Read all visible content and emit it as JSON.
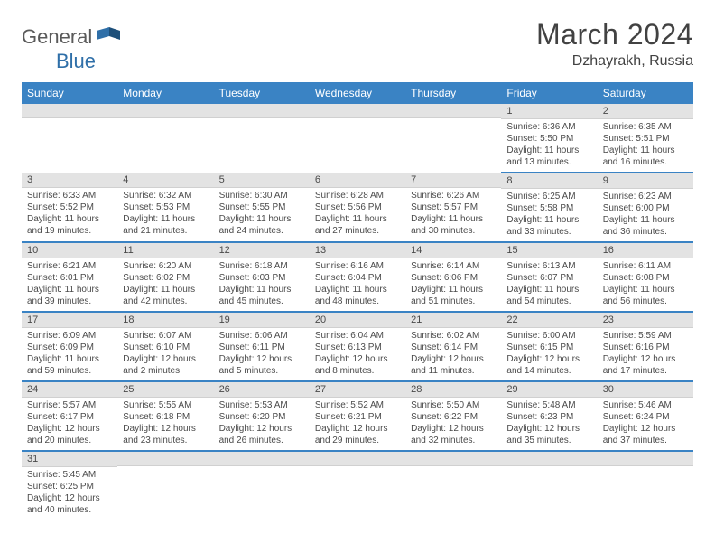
{
  "brand": {
    "part1": "General",
    "part2": "Blue"
  },
  "title": "March 2024",
  "location": "Dzhayrakh, Russia",
  "colors": {
    "header_bg": "#3a83c4",
    "header_text": "#ffffff",
    "daybar_bg": "#e3e3e3",
    "row_divider": "#3a83c4",
    "body_text": "#4a4a4a",
    "brand_gray": "#5a5a5a",
    "brand_blue": "#2f6fa8"
  },
  "weekdays": [
    "Sunday",
    "Monday",
    "Tuesday",
    "Wednesday",
    "Thursday",
    "Friday",
    "Saturday"
  ],
  "weeks": [
    [
      null,
      null,
      null,
      null,
      null,
      {
        "n": "1",
        "sr": "6:36 AM",
        "ss": "5:50 PM",
        "dl": "11 hours and 13 minutes."
      },
      {
        "n": "2",
        "sr": "6:35 AM",
        "ss": "5:51 PM",
        "dl": "11 hours and 16 minutes."
      }
    ],
    [
      {
        "n": "3",
        "sr": "6:33 AM",
        "ss": "5:52 PM",
        "dl": "11 hours and 19 minutes."
      },
      {
        "n": "4",
        "sr": "6:32 AM",
        "ss": "5:53 PM",
        "dl": "11 hours and 21 minutes."
      },
      {
        "n": "5",
        "sr": "6:30 AM",
        "ss": "5:55 PM",
        "dl": "11 hours and 24 minutes."
      },
      {
        "n": "6",
        "sr": "6:28 AM",
        "ss": "5:56 PM",
        "dl": "11 hours and 27 minutes."
      },
      {
        "n": "7",
        "sr": "6:26 AM",
        "ss": "5:57 PM",
        "dl": "11 hours and 30 minutes."
      },
      {
        "n": "8",
        "sr": "6:25 AM",
        "ss": "5:58 PM",
        "dl": "11 hours and 33 minutes."
      },
      {
        "n": "9",
        "sr": "6:23 AM",
        "ss": "6:00 PM",
        "dl": "11 hours and 36 minutes."
      }
    ],
    [
      {
        "n": "10",
        "sr": "6:21 AM",
        "ss": "6:01 PM",
        "dl": "11 hours and 39 minutes."
      },
      {
        "n": "11",
        "sr": "6:20 AM",
        "ss": "6:02 PM",
        "dl": "11 hours and 42 minutes."
      },
      {
        "n": "12",
        "sr": "6:18 AM",
        "ss": "6:03 PM",
        "dl": "11 hours and 45 minutes."
      },
      {
        "n": "13",
        "sr": "6:16 AM",
        "ss": "6:04 PM",
        "dl": "11 hours and 48 minutes."
      },
      {
        "n": "14",
        "sr": "6:14 AM",
        "ss": "6:06 PM",
        "dl": "11 hours and 51 minutes."
      },
      {
        "n": "15",
        "sr": "6:13 AM",
        "ss": "6:07 PM",
        "dl": "11 hours and 54 minutes."
      },
      {
        "n": "16",
        "sr": "6:11 AM",
        "ss": "6:08 PM",
        "dl": "11 hours and 56 minutes."
      }
    ],
    [
      {
        "n": "17",
        "sr": "6:09 AM",
        "ss": "6:09 PM",
        "dl": "11 hours and 59 minutes."
      },
      {
        "n": "18",
        "sr": "6:07 AM",
        "ss": "6:10 PM",
        "dl": "12 hours and 2 minutes."
      },
      {
        "n": "19",
        "sr": "6:06 AM",
        "ss": "6:11 PM",
        "dl": "12 hours and 5 minutes."
      },
      {
        "n": "20",
        "sr": "6:04 AM",
        "ss": "6:13 PM",
        "dl": "12 hours and 8 minutes."
      },
      {
        "n": "21",
        "sr": "6:02 AM",
        "ss": "6:14 PM",
        "dl": "12 hours and 11 minutes."
      },
      {
        "n": "22",
        "sr": "6:00 AM",
        "ss": "6:15 PM",
        "dl": "12 hours and 14 minutes."
      },
      {
        "n": "23",
        "sr": "5:59 AM",
        "ss": "6:16 PM",
        "dl": "12 hours and 17 minutes."
      }
    ],
    [
      {
        "n": "24",
        "sr": "5:57 AM",
        "ss": "6:17 PM",
        "dl": "12 hours and 20 minutes."
      },
      {
        "n": "25",
        "sr": "5:55 AM",
        "ss": "6:18 PM",
        "dl": "12 hours and 23 minutes."
      },
      {
        "n": "26",
        "sr": "5:53 AM",
        "ss": "6:20 PM",
        "dl": "12 hours and 26 minutes."
      },
      {
        "n": "27",
        "sr": "5:52 AM",
        "ss": "6:21 PM",
        "dl": "12 hours and 29 minutes."
      },
      {
        "n": "28",
        "sr": "5:50 AM",
        "ss": "6:22 PM",
        "dl": "12 hours and 32 minutes."
      },
      {
        "n": "29",
        "sr": "5:48 AM",
        "ss": "6:23 PM",
        "dl": "12 hours and 35 minutes."
      },
      {
        "n": "30",
        "sr": "5:46 AM",
        "ss": "6:24 PM",
        "dl": "12 hours and 37 minutes."
      }
    ],
    [
      {
        "n": "31",
        "sr": "5:45 AM",
        "ss": "6:25 PM",
        "dl": "12 hours and 40 minutes."
      },
      null,
      null,
      null,
      null,
      null,
      null
    ]
  ],
  "labels": {
    "sunrise": "Sunrise:",
    "sunset": "Sunset:",
    "daylight": "Daylight:"
  }
}
